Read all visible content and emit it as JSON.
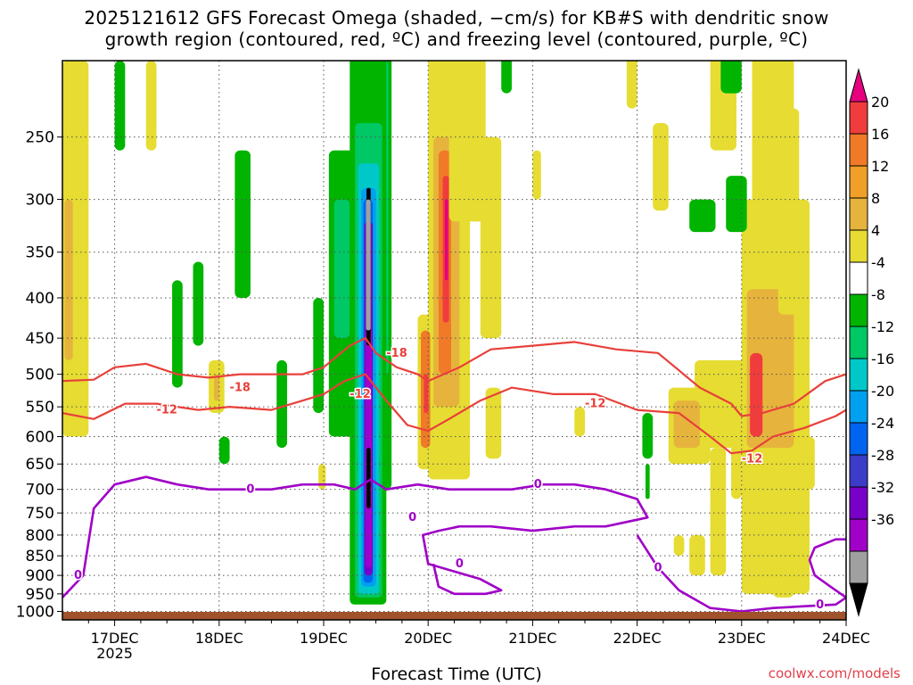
{
  "title": {
    "line1": "2025121612 GFS Forecast Omega (shaded, −cm/s) for KB#S with dendritic snow",
    "line2": "growth region (contoured, red, ºC) and freezing level (contoured, purple, ºC)"
  },
  "credit": "coolwx.com/models",
  "chart_data": {
    "type": "heatmap",
    "title": "2025121612 GFS Forecast Omega (shaded, −cm/s) for KB#S with dendritic snow growth region (contoured, red, ºC) and freezing level (contoured, purple, ºC)",
    "xlabel": "Forecast Time (UTC)",
    "ylabel": "",
    "x_ticks": [
      "17DEC",
      "18DEC",
      "19DEC",
      "20DEC",
      "21DEC",
      "22DEC",
      "23DEC",
      "24DEC"
    ],
    "x_year_label": "2025",
    "x_range_days": [
      16.5,
      24.0
    ],
    "y_ticks": [
      250,
      300,
      350,
      400,
      450,
      500,
      550,
      600,
      650,
      700,
      750,
      800,
      850,
      900,
      950,
      1000
    ],
    "y_scale": "log",
    "y_range": [
      200,
      1025
    ],
    "grid": "dotted",
    "colorbar": {
      "labels": [
        20,
        16,
        12,
        8,
        4,
        -4,
        -8,
        -12,
        -16,
        -20,
        -24,
        -28,
        -32,
        -36
      ],
      "colors": [
        "#e6007e",
        "#f03c3c",
        "#f07a28",
        "#f0a028",
        "#e6b43c",
        "#e6dc32",
        "#ffffff",
        "#00b400",
        "#00c864",
        "#00c8c8",
        "#00a0f0",
        "#0064f0",
        "#3c3cc8",
        "#7800c8",
        "#a000c8",
        "#a0a0a0",
        "#000000"
      ]
    },
    "omega_features": [
      {
        "time": 19.42,
        "p_top": 290,
        "p_bottom": 960,
        "omega": -36,
        "note": "strong ascent column"
      },
      {
        "time": 20.15,
        "p_top": 250,
        "p_bottom": 650,
        "omega": 20
      },
      {
        "time": 23.1,
        "p_top": 380,
        "p_bottom": 620,
        "omega": 16
      },
      {
        "time": 23.3,
        "p_top": 120,
        "p_bottom": 900,
        "omega": 8
      }
    ],
    "series": [
      {
        "contour": "-18",
        "color": "#e8403a",
        "x": [
          16.5,
          16.8,
          17.0,
          17.3,
          17.6,
          17.9,
          18.2,
          18.5,
          18.8,
          19.0,
          19.25,
          19.4,
          19.5,
          19.7,
          19.9,
          20.0,
          20.3,
          20.6,
          21.0,
          21.4,
          21.8,
          22.2,
          22.6,
          22.9,
          23.0,
          23.2,
          23.5,
          23.8,
          24.0
        ],
        "y": [
          510,
          508,
          490,
          485,
          500,
          505,
          500,
          500,
          500,
          490,
          460,
          450,
          470,
          490,
          500,
          510,
          490,
          465,
          460,
          455,
          465,
          470,
          520,
          545,
          565,
          560,
          545,
          510,
          500
        ]
      },
      {
        "contour": "-12",
        "color": "#e8403a",
        "x": [
          16.5,
          16.8,
          17.1,
          17.4,
          17.8,
          18.1,
          18.5,
          18.8,
          19.0,
          19.2,
          19.4,
          19.6,
          19.8,
          20.0,
          20.2,
          20.5,
          20.8,
          21.2,
          21.6,
          22.0,
          22.4,
          22.7,
          22.9,
          23.1,
          23.3,
          23.6,
          23.9,
          24.0
        ],
        "y": [
          560,
          570,
          545,
          545,
          555,
          550,
          555,
          540,
          530,
          510,
          500,
          540,
          580,
          590,
          570,
          540,
          520,
          530,
          530,
          555,
          560,
          600,
          630,
          625,
          600,
          585,
          565,
          555
        ]
      },
      {
        "contour": "0",
        "color": "#a000c8",
        "x": [
          16.5,
          16.7,
          16.8,
          17.0,
          17.3,
          17.6,
          17.9,
          18.2,
          18.5,
          18.8,
          19.1,
          19.3,
          19.45,
          19.6,
          19.9,
          20.2,
          20.5,
          20.8,
          21.1,
          21.4,
          21.7,
          22.0,
          22.1,
          21.9,
          21.7,
          21.4,
          21.0,
          20.6,
          20.3,
          20.1,
          19.95,
          20.0,
          20.5,
          20.7,
          20.55,
          20.25,
          20.1,
          20.05
        ],
        "y": [
          960,
          900,
          740,
          690,
          675,
          690,
          700,
          700,
          700,
          690,
          690,
          700,
          680,
          700,
          690,
          700,
          700,
          700,
          690,
          690,
          700,
          720,
          760,
          770,
          780,
          780,
          790,
          780,
          780,
          790,
          800,
          870,
          910,
          940,
          950,
          950,
          930,
          870
        ]
      },
      {
        "contour": "0",
        "color": "#a000c8",
        "x": [
          22.0,
          22.2,
          22.4,
          22.7,
          23.0,
          23.3,
          23.6,
          23.9,
          24.0,
          23.85,
          23.7,
          23.65,
          23.7,
          23.9,
          24.0
        ],
        "y": [
          800,
          880,
          940,
          990,
          1000,
          990,
          985,
          980,
          960,
          930,
          900,
          860,
          830,
          810,
          810
        ]
      }
    ],
    "contour_labels": [
      {
        "text": "-18",
        "x": 19.7,
        "y": 470
      },
      {
        "text": "-18",
        "x": 18.2,
        "y": 520
      },
      {
        "text": "-12",
        "x": 19.35,
        "y": 530
      },
      {
        "text": "-12",
        "x": 17.5,
        "y": 555
      },
      {
        "text": "-12",
        "x": 21.6,
        "y": 545
      },
      {
        "text": "-12",
        "x": 23.1,
        "y": 640
      },
      {
        "text": "0",
        "x": 16.65,
        "y": 900
      },
      {
        "text": "0",
        "x": 18.3,
        "y": 700
      },
      {
        "text": "0",
        "x": 21.05,
        "y": 690
      },
      {
        "text": "0",
        "x": 19.85,
        "y": 760
      },
      {
        "text": "0",
        "x": 20.3,
        "y": 870
      },
      {
        "text": "0",
        "x": 22.2,
        "y": 880
      },
      {
        "text": "0",
        "x": 23.75,
        "y": 980
      }
    ]
  }
}
